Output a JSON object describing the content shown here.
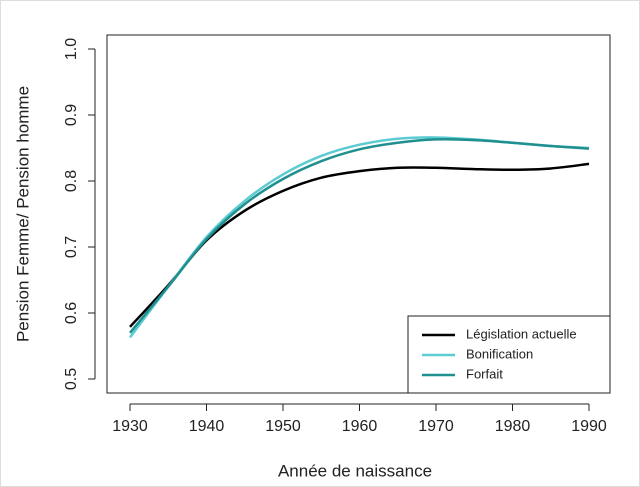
{
  "chart_data": {
    "type": "line",
    "x_label": "Année de naissance",
    "y_label": "Pension Femme/ Pension homme",
    "x": [
      1930,
      1935,
      1940,
      1945,
      1950,
      1955,
      1960,
      1965,
      1970,
      1975,
      1980,
      1985,
      1990
    ],
    "series": [
      {
        "name": "Législation actuelle",
        "color": "#000000",
        "values": [
          0.579,
          0.642,
          0.71,
          0.755,
          0.785,
          0.805,
          0.815,
          0.82,
          0.82,
          0.818,
          0.817,
          0.819,
          0.826
        ]
      },
      {
        "name": "Bonification",
        "color": "#5ccbd2",
        "values": [
          0.563,
          0.64,
          0.715,
          0.77,
          0.81,
          0.838,
          0.855,
          0.864,
          0.866,
          0.863,
          0.858,
          0.853,
          0.85
        ]
      },
      {
        "name": "Forfait",
        "color": "#1f8f8f",
        "values": [
          0.57,
          0.64,
          0.712,
          0.765,
          0.803,
          0.83,
          0.848,
          0.858,
          0.863,
          0.862,
          0.858,
          0.853,
          0.849
        ]
      }
    ],
    "xlim": [
      1930,
      1990
    ],
    "xticks": [
      1930,
      1940,
      1950,
      1960,
      1970,
      1980,
      1990
    ],
    "ylim": [
      0.5,
      1.0
    ],
    "yticks": [
      0.5,
      0.6,
      0.7,
      0.8,
      0.9,
      {
        "value": 1,
        "label": "1.0"
      }
    ],
    "legend": "bottom-right"
  }
}
